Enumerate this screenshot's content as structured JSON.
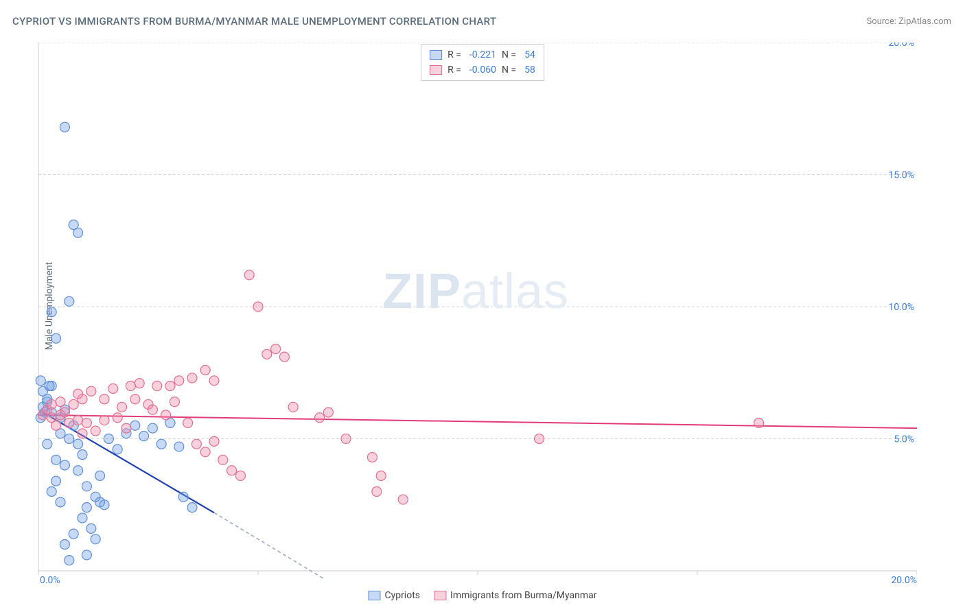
{
  "title": "CYPRIOT VS IMMIGRANTS FROM BURMA/MYANMAR MALE UNEMPLOYMENT CORRELATION CHART",
  "source_prefix": "Source: ",
  "source_name": "ZipAtlas.com",
  "ylabel": "Male Unemployment",
  "watermark_a": "ZIP",
  "watermark_b": "atlas",
  "chart": {
    "type": "scatter",
    "xlim": [
      0,
      20
    ],
    "ylim": [
      0,
      20
    ],
    "xtick_step": 5,
    "ytick_step": 5,
    "xtick_labels": [
      "0.0%",
      "20.0%"
    ],
    "ytick_labels": [
      "5.0%",
      "10.0%",
      "15.0%",
      "20.0%"
    ],
    "background_color": "#ffffff",
    "grid_color": "#d6d6d6",
    "axis_color": "#cccccc",
    "tick_label_color": "#3b7dd8",
    "marker_radius": 7,
    "series": [
      {
        "name": "Cypriots",
        "color_fill": "rgba(115,160,230,0.40)",
        "color_stroke": "#5f8fd6",
        "trend_color": "#1f3fb0",
        "trend_dash_color": "#9aa6bd",
        "R": "-0.221",
        "N": "54",
        "trend": {
          "x1": 0.1,
          "y1": 6.0,
          "x2": 4.0,
          "y2": 2.2,
          "x_solid_end": 4.0,
          "x_dash_end": 6.5,
          "y_dash_end": -0.3
        },
        "points": [
          [
            0.05,
            5.8
          ],
          [
            0.1,
            6.2
          ],
          [
            0.15,
            6.0
          ],
          [
            0.2,
            6.4
          ],
          [
            0.1,
            6.8
          ],
          [
            0.3,
            7.0
          ],
          [
            0.05,
            7.2
          ],
          [
            0.25,
            7.0
          ],
          [
            0.4,
            8.8
          ],
          [
            0.6,
            16.8
          ],
          [
            0.8,
            13.1
          ],
          [
            0.9,
            12.8
          ],
          [
            0.7,
            10.2
          ],
          [
            0.3,
            9.8
          ],
          [
            0.2,
            6.5
          ],
          [
            0.3,
            6.0
          ],
          [
            0.5,
            5.8
          ],
          [
            0.6,
            6.1
          ],
          [
            0.8,
            5.5
          ],
          [
            0.5,
            5.2
          ],
          [
            0.7,
            5.0
          ],
          [
            0.2,
            4.8
          ],
          [
            0.4,
            4.2
          ],
          [
            0.6,
            4.0
          ],
          [
            0.9,
            3.8
          ],
          [
            1.1,
            3.2
          ],
          [
            1.3,
            2.8
          ],
          [
            1.4,
            2.6
          ],
          [
            1.5,
            2.5
          ],
          [
            1.0,
            2.0
          ],
          [
            1.2,
            1.6
          ],
          [
            0.8,
            1.4
          ],
          [
            0.6,
            1.0
          ],
          [
            0.7,
            0.4
          ],
          [
            1.3,
            1.2
          ],
          [
            1.1,
            2.4
          ],
          [
            1.4,
            3.6
          ],
          [
            1.6,
            5.0
          ],
          [
            1.8,
            4.6
          ],
          [
            2.0,
            5.2
          ],
          [
            2.2,
            5.5
          ],
          [
            2.4,
            5.1
          ],
          [
            2.6,
            5.4
          ],
          [
            2.8,
            4.8
          ],
          [
            3.0,
            5.6
          ],
          [
            3.2,
            4.7
          ],
          [
            3.3,
            2.8
          ],
          [
            3.5,
            2.4
          ],
          [
            1.0,
            4.4
          ],
          [
            0.9,
            4.8
          ],
          [
            0.4,
            3.4
          ],
          [
            0.3,
            3.0
          ],
          [
            0.5,
            2.6
          ],
          [
            1.1,
            0.6
          ]
        ]
      },
      {
        "name": "Immigrants from Burma/Myanmar",
        "color_fill": "rgba(240,140,170,0.40)",
        "color_stroke": "#e07090",
        "trend_color": "#e23b7a",
        "R": "-0.060",
        "N": "58",
        "trend": {
          "x1": 0.0,
          "y1": 5.9,
          "x2": 20.0,
          "y2": 5.4
        },
        "points": [
          [
            0.1,
            5.9
          ],
          [
            0.2,
            6.1
          ],
          [
            0.3,
            5.8
          ],
          [
            0.3,
            6.3
          ],
          [
            0.5,
            5.9
          ],
          [
            0.6,
            6.0
          ],
          [
            0.8,
            6.3
          ],
          [
            0.9,
            5.7
          ],
          [
            1.0,
            6.5
          ],
          [
            1.2,
            6.8
          ],
          [
            1.5,
            5.7
          ],
          [
            1.7,
            6.9
          ],
          [
            1.9,
            6.2
          ],
          [
            2.1,
            7.0
          ],
          [
            2.3,
            7.1
          ],
          [
            2.5,
            6.3
          ],
          [
            2.7,
            7.0
          ],
          [
            2.9,
            5.9
          ],
          [
            3.0,
            7.0
          ],
          [
            3.2,
            7.2
          ],
          [
            3.4,
            5.6
          ],
          [
            3.6,
            4.8
          ],
          [
            3.8,
            4.5
          ],
          [
            4.0,
            4.9
          ],
          [
            4.2,
            4.2
          ],
          [
            4.4,
            3.8
          ],
          [
            4.6,
            3.6
          ],
          [
            4.0,
            7.2
          ],
          [
            3.8,
            7.6
          ],
          [
            4.8,
            11.2
          ],
          [
            5.0,
            10.0
          ],
          [
            5.2,
            8.2
          ],
          [
            5.4,
            8.4
          ],
          [
            5.6,
            8.1
          ],
          [
            5.8,
            6.2
          ],
          [
            6.4,
            5.8
          ],
          [
            6.6,
            6.0
          ],
          [
            7.0,
            5.0
          ],
          [
            7.6,
            4.3
          ],
          [
            7.7,
            3.0
          ],
          [
            7.8,
            3.6
          ],
          [
            8.3,
            2.7
          ],
          [
            11.4,
            5.0
          ],
          [
            16.4,
            5.6
          ],
          [
            2.0,
            5.4
          ],
          [
            1.3,
            5.3
          ],
          [
            1.0,
            5.2
          ],
          [
            0.7,
            5.6
          ],
          [
            1.5,
            6.5
          ],
          [
            1.8,
            5.8
          ],
          [
            2.2,
            6.5
          ],
          [
            2.6,
            6.1
          ],
          [
            3.1,
            6.4
          ],
          [
            3.5,
            7.3
          ],
          [
            0.4,
            5.5
          ],
          [
            0.5,
            6.4
          ],
          [
            0.9,
            6.7
          ],
          [
            1.1,
            5.6
          ]
        ]
      }
    ]
  },
  "legend_top": {
    "R_label": "R =",
    "N_label": "N ="
  },
  "legend_bottom": {
    "series_a": "Cypriots",
    "series_b": "Immigrants from Burma/Myanmar"
  }
}
